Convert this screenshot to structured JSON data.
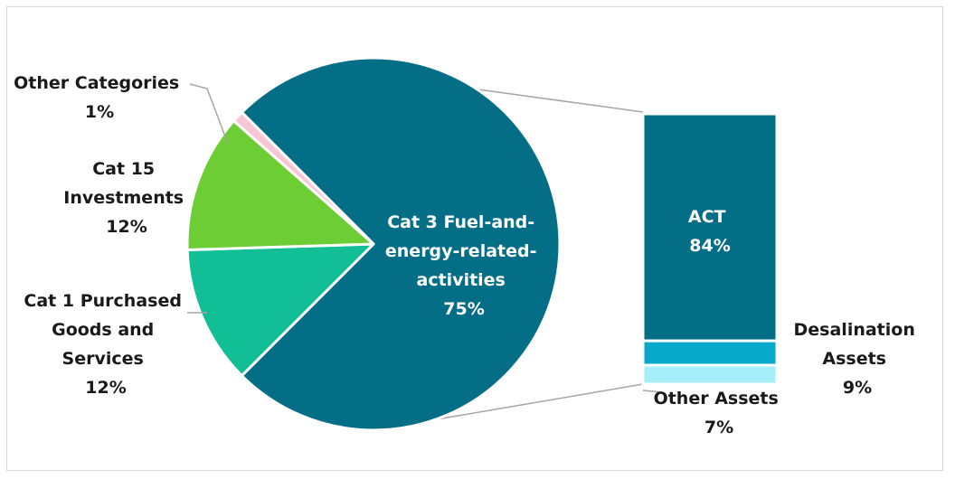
{
  "chart_data": [
    {
      "type": "pie",
      "title": "",
      "slices": [
        {
          "label": "Cat 3 Fuel-and-energy-related-activities",
          "value": 75,
          "value_label": "75%",
          "color": "#046e87"
        },
        {
          "label": "Cat 1 Purchased Goods and Services",
          "value": 12,
          "value_label": "12%",
          "color": "#12be95"
        },
        {
          "label": "Cat 15 Investments",
          "value": 12,
          "value_label": "12%",
          "color": "#6ccd34"
        },
        {
          "label": "Other Categories",
          "value": 1,
          "value_label": "1%",
          "color": "#f7c6d4"
        }
      ],
      "label_lines": {
        "cat3": [
          "Cat 3 Fuel-and-",
          "energy-related-",
          "activities",
          "75%"
        ],
        "cat1": [
          "Cat 1 Purchased",
          "Goods and",
          "Services",
          "12%"
        ],
        "cat15": [
          "Cat 15",
          "Investments",
          "12%"
        ],
        "other": [
          "Other Categories",
          "1%"
        ]
      }
    },
    {
      "type": "bar",
      "stacked": true,
      "title": "",
      "breakdown_of": "Cat 3 Fuel-and-energy-related-activities",
      "segments": [
        {
          "label": "ACT",
          "value": 84,
          "value_label": "84%",
          "color": "#046e87"
        },
        {
          "label": "Desalination Assets",
          "value": 9,
          "value_label": "9%",
          "color": "#07a8c9"
        },
        {
          "label": "Other Assets",
          "value": 7,
          "value_label": "7%",
          "color": "#a6eefa"
        }
      ],
      "label_lines": {
        "act": [
          "ACT",
          "84%"
        ],
        "desal": [
          "Desalination",
          "Assets",
          "9%"
        ],
        "other_assets": [
          "Other Assets",
          "7%"
        ]
      }
    }
  ],
  "colors": {
    "connector": "#a6a6a6",
    "leader": "#a6a6a6",
    "slice_border": "#ffffff",
    "frame_border": "#d9d9d9"
  }
}
